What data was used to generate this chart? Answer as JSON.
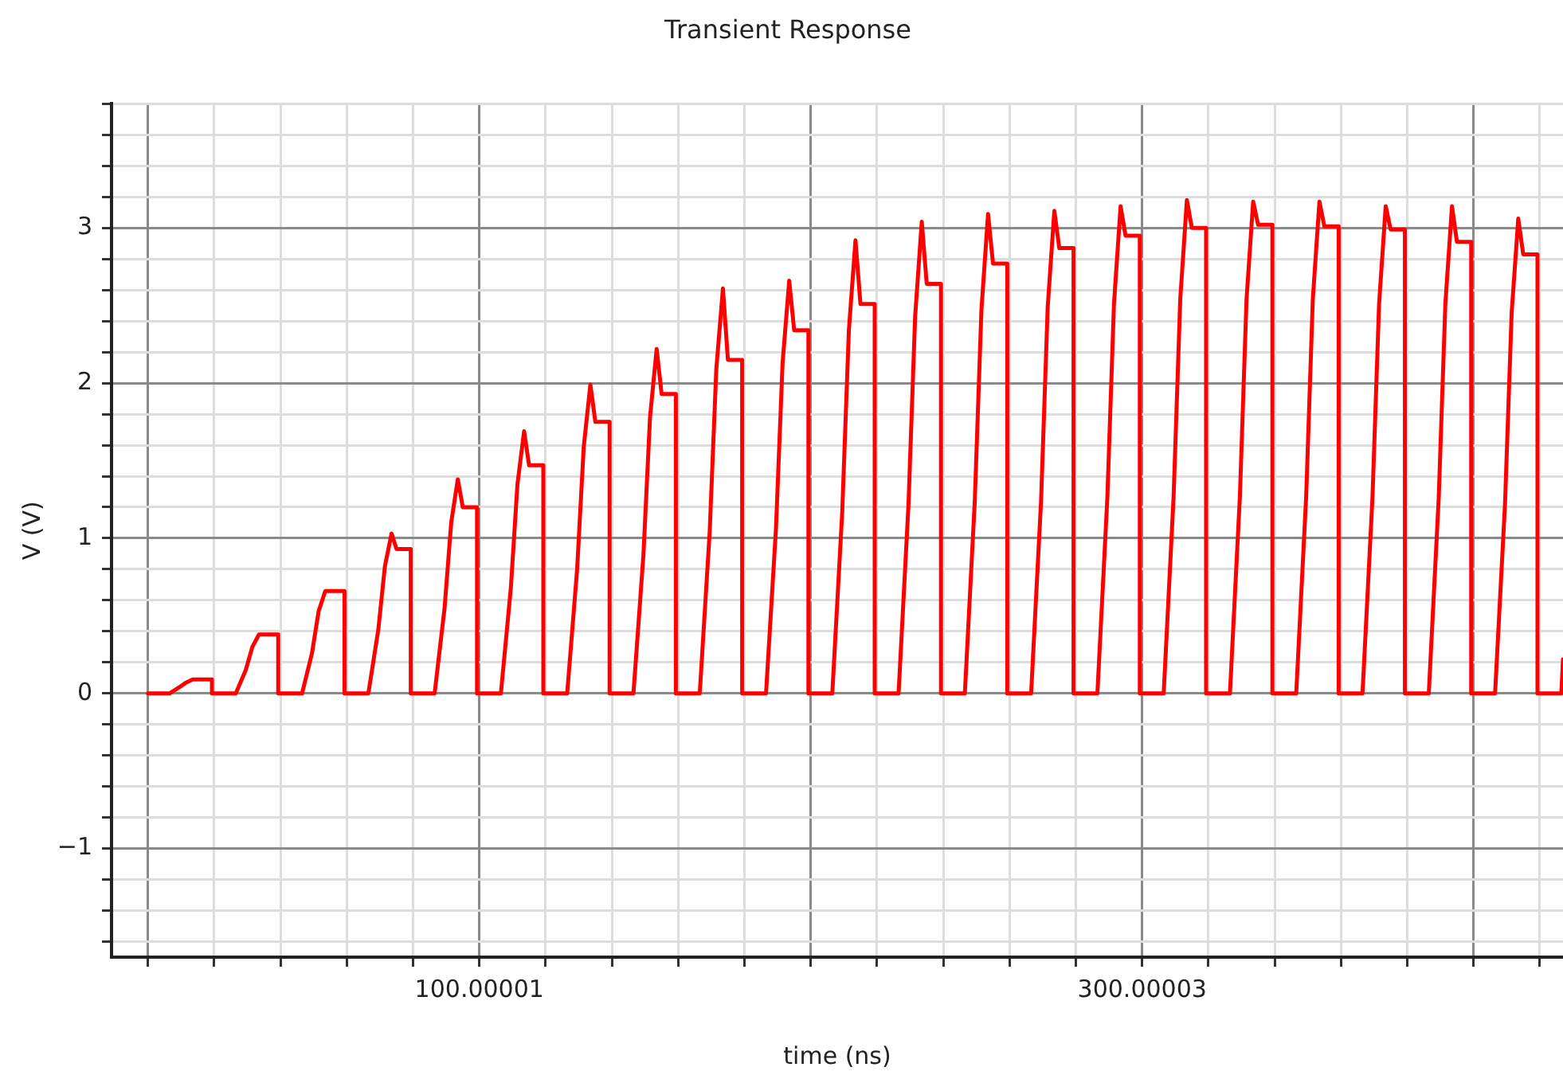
{
  "chart_data": {
    "type": "line",
    "title": "Transient Response",
    "xlabel": "time (ns)",
    "ylabel": "V (V)",
    "x": [
      0,
      6.5,
      9.5,
      11.5,
      13.5,
      15,
      19.3,
      19.3,
      26.5,
      29.5,
      31.5,
      33.5,
      35,
      39.3,
      39.3,
      46.5,
      49.5,
      51.5,
      53.5,
      55,
      59.3,
      59.3,
      66.5,
      69.5,
      71.5,
      73.5,
      75,
      79.3,
      79.3,
      86.5,
      89.5,
      91.5,
      93.5,
      95,
      99.3,
      99.3,
      106.5,
      109.5,
      111.5,
      113.5,
      115,
      119.3,
      119.3,
      126.5,
      129.5,
      131.5,
      133.5,
      135,
      139.3,
      139.3,
      146.5,
      149.5,
      151.5,
      153.5,
      155,
      159.3,
      159.3,
      166.5,
      169.5,
      171.5,
      173.5,
      175,
      179.3,
      179.3,
      186.5,
      189.5,
      191.5,
      193.5,
      195,
      199.3,
      199.3,
      206.5,
      209.5,
      211.5,
      213.5,
      215,
      219.3,
      219.3,
      226.5,
      229.5,
      231.5,
      233.5,
      235,
      239.3,
      239.3,
      246.5,
      249.5,
      251.5,
      253.5,
      255,
      259.3,
      259.3,
      266.5,
      269.5,
      271.5,
      273.5,
      275,
      279.3,
      279.3,
      286.5,
      289.5,
      291.5,
      293.5,
      295,
      299.3,
      299.3,
      306.5,
      309.5,
      311.5,
      313.5,
      315,
      319.3,
      319.3,
      326.5,
      329.5,
      331.5,
      333.5,
      335,
      339.3,
      339.3,
      346.5,
      349.5,
      351.5,
      353.5,
      355,
      359.3,
      359.3,
      366.5,
      369.5,
      371.5,
      373.5,
      375,
      379.3,
      379.3,
      386.5,
      389.5,
      391.5,
      393.5,
      395,
      399.3,
      399.3,
      406.5,
      409.5,
      411.5,
      413.5,
      415,
      419.3,
      419.3,
      426.5,
      427
    ],
    "series": [
      {
        "color": "#ff0000",
        "values": [
          0,
          0,
          0.04,
          0.07,
          0.09,
          0.09,
          0.09,
          0,
          0,
          0.15,
          0.3,
          0.38,
          0.38,
          0.38,
          0,
          0,
          0.26,
          0.53,
          0.66,
          0.66,
          0.66,
          0,
          0,
          0.41,
          0.82,
          1.03,
          0.93,
          0.93,
          0,
          0,
          0.55,
          1.1,
          1.38,
          1.2,
          1.2,
          0,
          0,
          0.68,
          1.35,
          1.69,
          1.47,
          1.47,
          0,
          0,
          0.8,
          1.59,
          1.99,
          1.75,
          1.75,
          0,
          0,
          0.89,
          1.78,
          2.22,
          1.93,
          1.93,
          0,
          0,
          1.04,
          2.09,
          2.61,
          2.15,
          2.15,
          0,
          0,
          1.06,
          2.13,
          2.66,
          2.34,
          2.34,
          0,
          0,
          1.17,
          2.34,
          2.92,
          2.51,
          2.51,
          0,
          0,
          1.22,
          2.43,
          3.04,
          2.64,
          2.64,
          0,
          0,
          1.24,
          2.47,
          3.09,
          2.77,
          2.77,
          0,
          0,
          1.24,
          2.49,
          3.11,
          2.87,
          2.87,
          0,
          0,
          1.26,
          2.51,
          3.14,
          2.95,
          2.95,
          0,
          0,
          1.27,
          2.54,
          3.18,
          3.0,
          3.0,
          0,
          0,
          1.27,
          2.54,
          3.17,
          3.02,
          3.02,
          0,
          0,
          1.27,
          2.54,
          3.17,
          3.01,
          3.01,
          0,
          0,
          1.26,
          2.51,
          3.14,
          2.99,
          2.99,
          0,
          0,
          1.26,
          2.51,
          3.14,
          2.91,
          2.91,
          0,
          0,
          1.22,
          2.45,
          3.06,
          2.83,
          2.83,
          0,
          0,
          0.22
        ]
      }
    ],
    "xlim": [
      -11,
      427
    ],
    "xticks": [
      {
        "value": 0,
        "label": null
      },
      {
        "value": 20,
        "label": null
      },
      {
        "value": 40,
        "label": null
      },
      {
        "value": 60,
        "label": null
      },
      {
        "value": 80,
        "label": null
      },
      100.00001,
      {
        "value": 120,
        "label": null
      },
      {
        "value": 140,
        "label": null
      },
      {
        "value": 160,
        "label": null
      },
      {
        "value": 180,
        "label": null
      },
      {
        "value": 200,
        "label": null
      },
      {
        "value": 220,
        "label": null
      },
      {
        "value": 240,
        "label": null
      },
      {
        "value": 260,
        "label": null
      },
      {
        "value": 280,
        "label": null
      },
      300.00003,
      {
        "value": 320,
        "label": null
      },
      {
        "value": 340,
        "label": null
      },
      {
        "value": 360,
        "label": null
      },
      {
        "value": 380,
        "label": null
      },
      {
        "value": 400,
        "label": null
      },
      {
        "value": 420,
        "label": null
      }
    ],
    "ylim": [
      -1.7,
      3.8
    ],
    "yticks": [
      {
        "value": -1.6,
        "label": null
      },
      {
        "value": -1.4,
        "label": null
      },
      {
        "value": -1.2,
        "label": null
      },
      {
        "value": -1,
        "label": "−1"
      },
      {
        "value": -0.8,
        "label": null
      },
      {
        "value": -0.6,
        "label": null
      },
      {
        "value": -0.4,
        "label": null
      },
      {
        "value": -0.2,
        "label": null
      },
      0,
      {
        "value": 0.2,
        "label": null
      },
      {
        "value": 0.4,
        "label": null
      },
      {
        "value": 0.6,
        "label": null
      },
      {
        "value": 0.8,
        "label": null
      },
      1,
      {
        "value": 1.2,
        "label": null
      },
      {
        "value": 1.4,
        "label": null
      },
      {
        "value": 1.6,
        "label": null
      },
      {
        "value": 1.8,
        "label": null
      },
      2,
      {
        "value": 2.2,
        "label": null
      },
      {
        "value": 2.4,
        "label": null
      },
      {
        "value": 2.6,
        "label": null
      },
      {
        "value": 2.8,
        "label": null
      },
      3,
      {
        "value": 3.2,
        "label": null
      },
      {
        "value": 3.4,
        "label": null
      },
      {
        "value": 3.6,
        "label": null
      },
      {
        "value": 3.8,
        "label": null
      }
    ],
    "grid": true,
    "marker": "none",
    "line_style": "solid"
  }
}
